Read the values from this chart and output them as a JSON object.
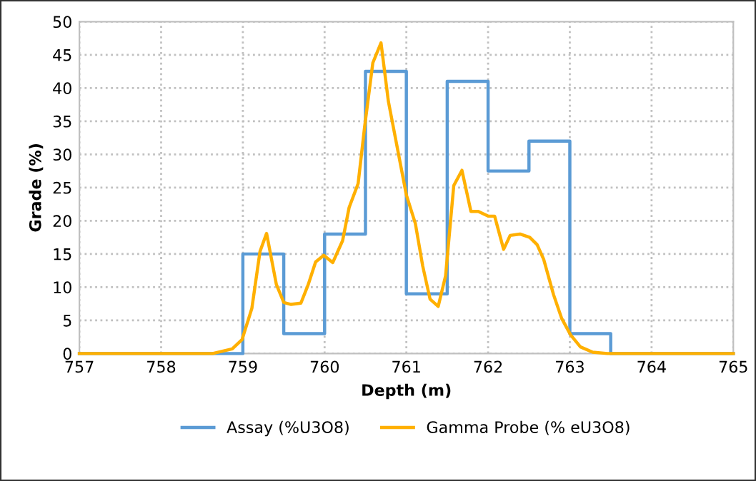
{
  "chart_data": {
    "type": "line",
    "xlabel": "Depth (m)",
    "ylabel": "Grade (%)",
    "xlim": [
      757,
      765
    ],
    "xticks": [
      757,
      758,
      759,
      760,
      761,
      762,
      763,
      764,
      765
    ],
    "ylim": [
      0,
      50
    ],
    "yticks": [
      0,
      5,
      10,
      15,
      20,
      25,
      30,
      35,
      40,
      45,
      50
    ],
    "grid": true,
    "legend": "bottom",
    "marker": "none",
    "line_style": "solid",
    "series": [
      {
        "name": "Assay (%U3O8)",
        "color": "#5b9bd5",
        "x": [
          757,
          759,
          759,
          759.5,
          759.5,
          760,
          760,
          760.5,
          760.5,
          761,
          761,
          761.5,
          761.5,
          762,
          762,
          762.5,
          762.5,
          763,
          763,
          763.5,
          763.5,
          765
        ],
        "values": [
          0,
          0,
          15,
          15,
          3,
          3,
          18,
          18,
          42.5,
          42.5,
          9,
          9,
          41,
          41,
          27.5,
          27.5,
          32,
          32,
          3,
          3,
          0,
          0
        ]
      },
      {
        "name": "Gamma Probe (% eU3O8)",
        "color": "#ffb000",
        "x": [
          757,
          758.63,
          758.87,
          758.99,
          759.11,
          759.21,
          759.29,
          759.41,
          759.5,
          759.59,
          759.71,
          759.8,
          759.89,
          759.99,
          760.1,
          760.22,
          760.3,
          760.41,
          760.49,
          760.59,
          760.69,
          760.78,
          761,
          761.11,
          761.2,
          761.29,
          761.39,
          761.48,
          761.58,
          761.68,
          761.79,
          761.88,
          762,
          762.08,
          762.19,
          762.27,
          762.39,
          762.51,
          762.6,
          762.68,
          762.8,
          762.9,
          763.01,
          763.13,
          763.28,
          763.46,
          765
        ],
        "values": [
          0,
          0,
          0.7,
          2.1,
          6.8,
          15.4,
          18.1,
          10.4,
          7.7,
          7.4,
          7.6,
          10.4,
          13.8,
          14.8,
          13.7,
          17,
          22,
          25.6,
          34.2,
          43.8,
          46.8,
          38,
          23.9,
          19.6,
          13.2,
          8.2,
          7.1,
          11.7,
          25.3,
          27.6,
          21.4,
          21.4,
          20.7,
          20.7,
          15.7,
          17.8,
          18,
          17.5,
          16.4,
          14.2,
          8.9,
          5.3,
          2.8,
          1.0,
          0.2,
          0,
          0
        ]
      }
    ]
  }
}
